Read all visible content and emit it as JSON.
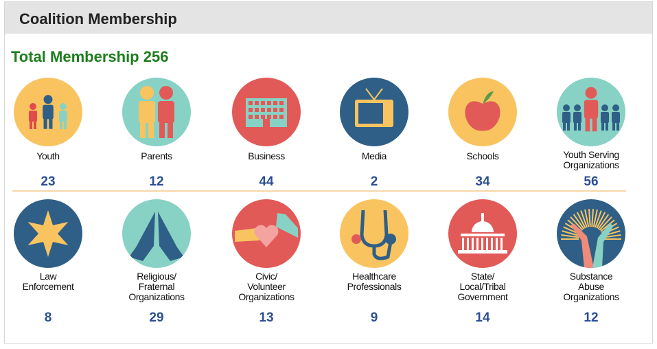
{
  "header": {
    "title": "Coalition Membership"
  },
  "total": {
    "label": "Total Membership",
    "value": 256
  },
  "items": [
    {
      "label_lines": [
        "Youth"
      ],
      "count": 23,
      "color": "#f9c460"
    },
    {
      "label_lines": [
        "Parents"
      ],
      "count": 12,
      "color": "#87d2c4"
    },
    {
      "label_lines": [
        "Business"
      ],
      "count": 44,
      "color": "#e15a57"
    },
    {
      "label_lines": [
        "Media"
      ],
      "count": 2,
      "color": "#2f5f86"
    },
    {
      "label_lines": [
        "Schools"
      ],
      "count": 34,
      "color": "#f9c460"
    },
    {
      "label_lines": [
        "Youth Serving",
        "Organizations"
      ],
      "count": 56,
      "color": "#87d2c4"
    },
    {
      "label_lines": [
        "Law",
        "Enforcement"
      ],
      "count": 8,
      "color": "#2f5f86"
    },
    {
      "label_lines": [
        "Religious/",
        "Fraternal",
        "Organizations"
      ],
      "count": 29,
      "color": "#87d2c4"
    },
    {
      "label_lines": [
        "Civic/",
        "Volunteer",
        "Organizations"
      ],
      "count": 13,
      "color": "#e15a57"
    },
    {
      "label_lines": [
        "Healthcare",
        "Professionals"
      ],
      "count": 9,
      "color": "#f9c460"
    },
    {
      "label_lines": [
        "State/",
        "Local/Tribal",
        "Government"
      ],
      "count": 14,
      "color": "#e15a57"
    },
    {
      "label_lines": [
        "Substance",
        "Abuse",
        "Organizations"
      ],
      "count": 12,
      "color": "#2f5f86"
    }
  ]
}
